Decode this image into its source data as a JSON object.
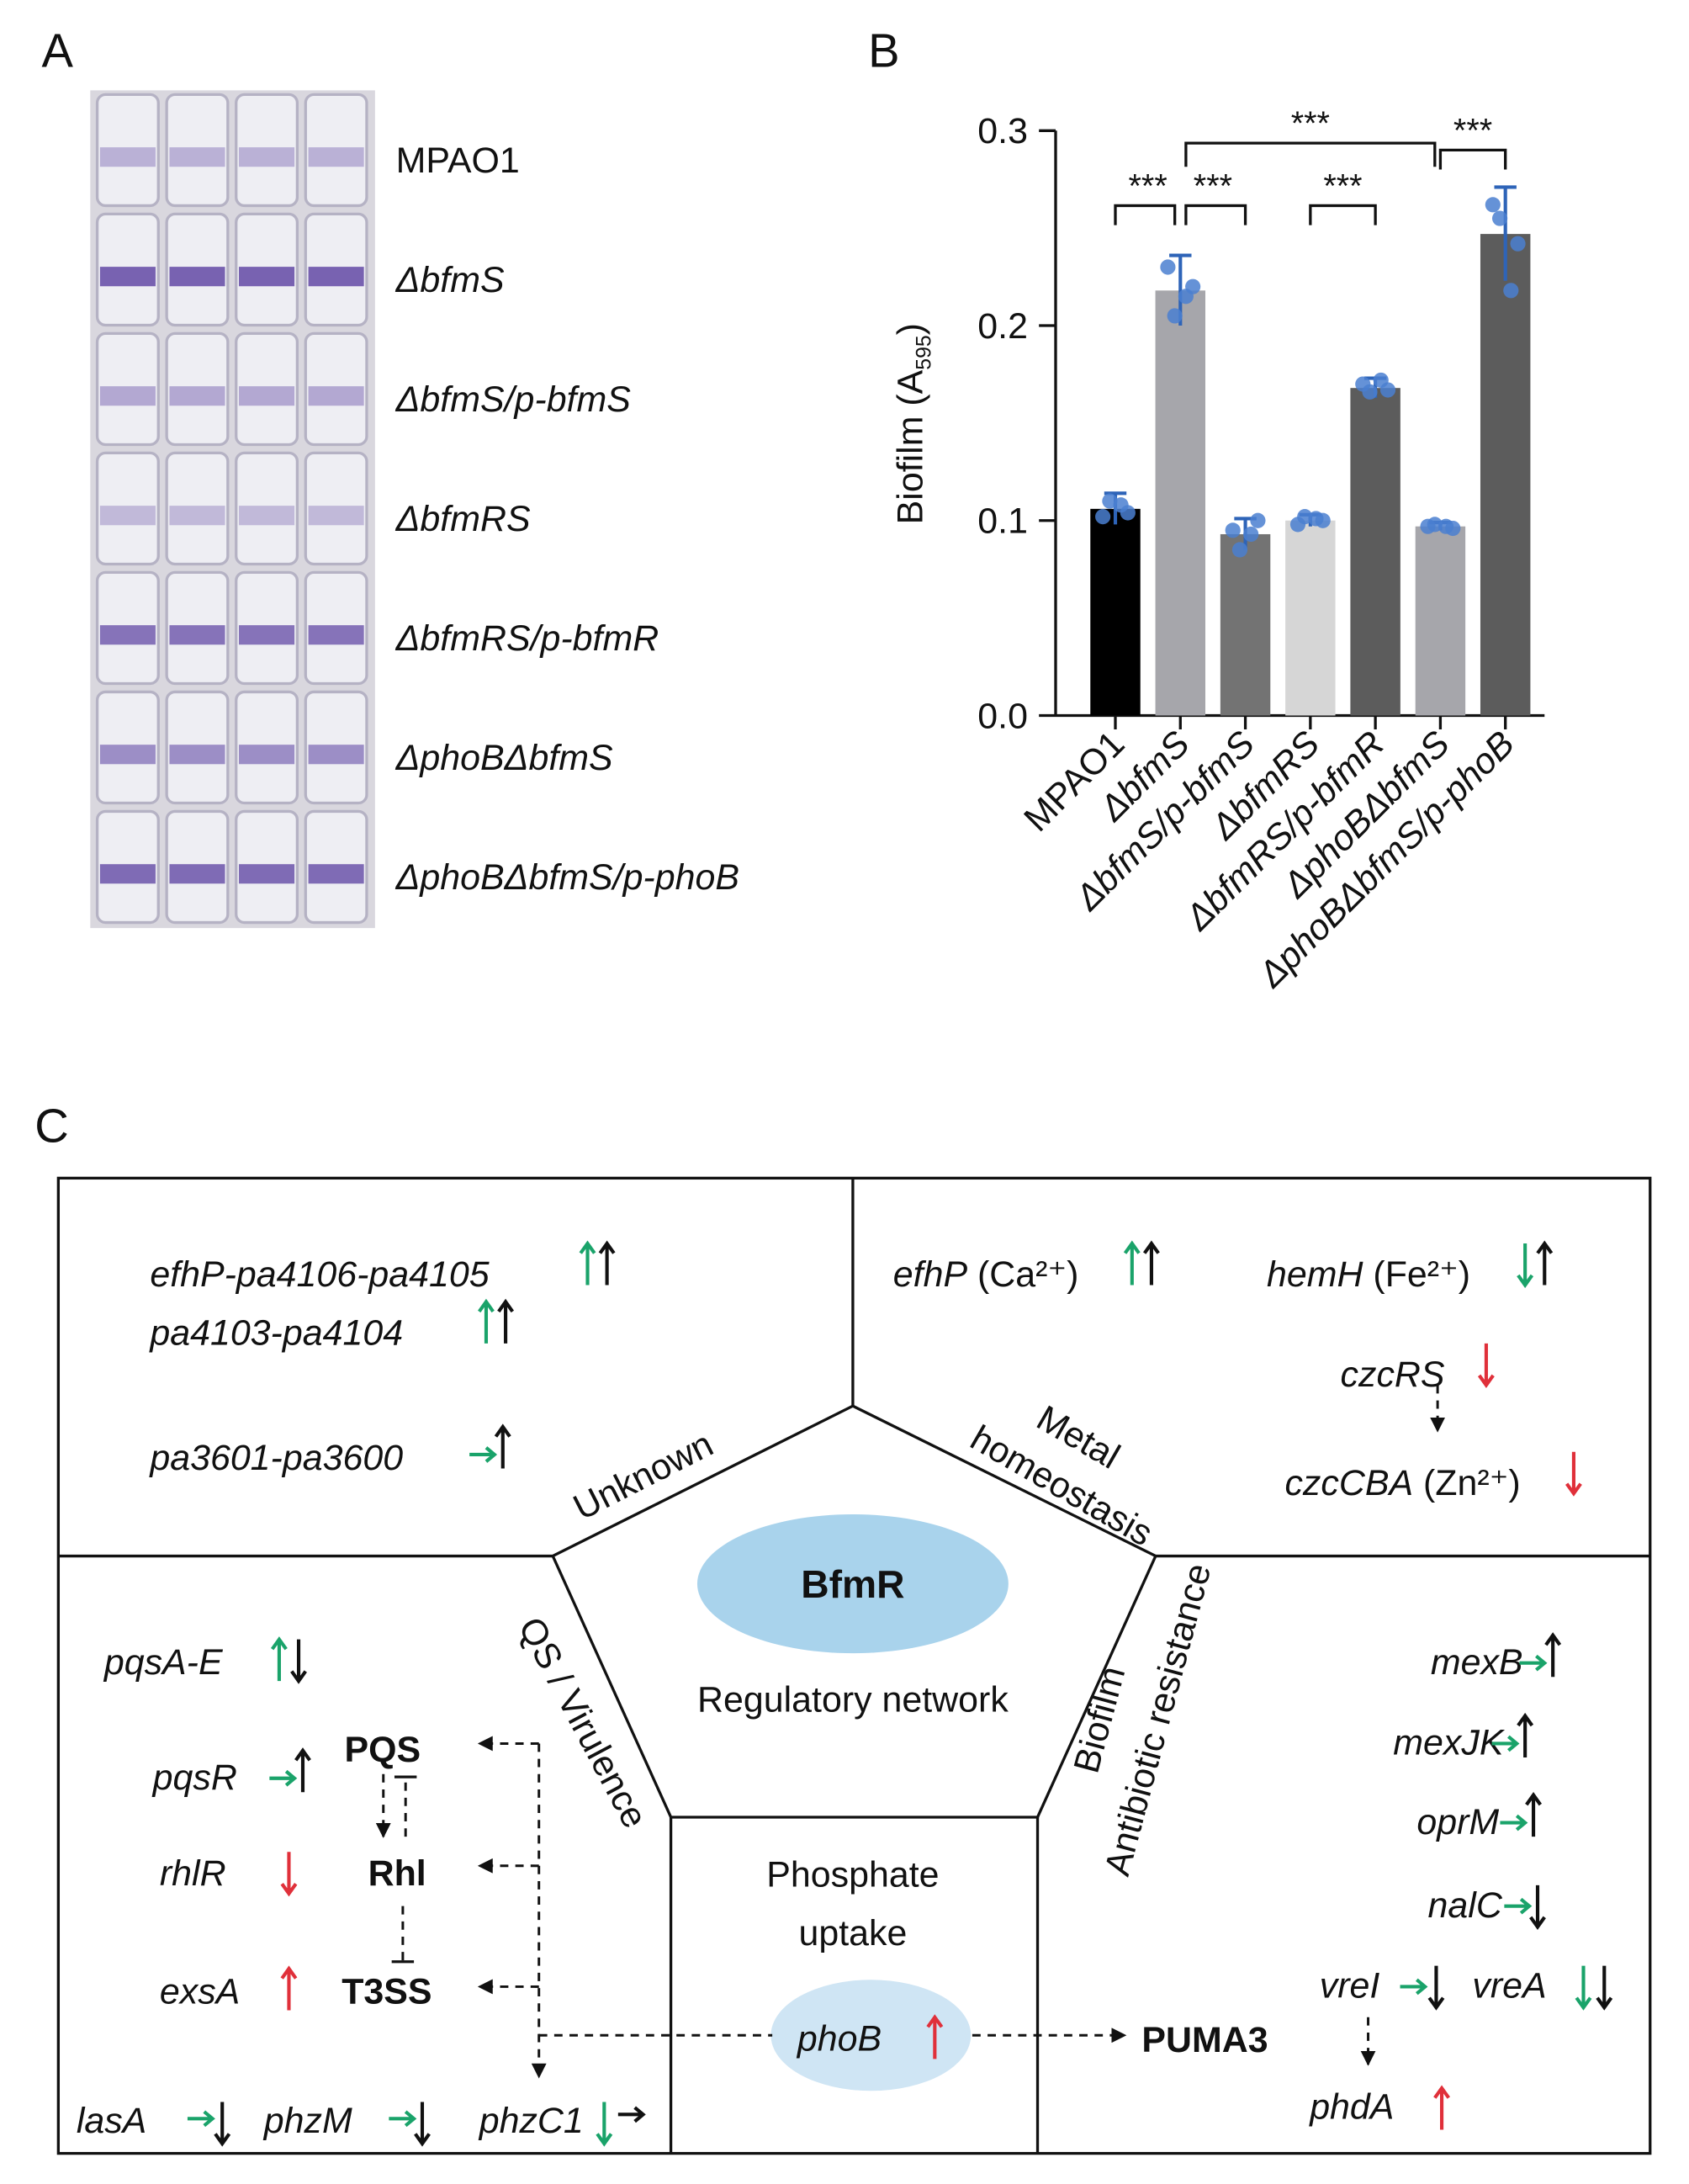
{
  "panels": {
    "a": "A",
    "b": "B",
    "c": "C"
  },
  "panel_a": {
    "strains": [
      "MPAO1",
      "ΔbfmS",
      "ΔbfmS/p-bfmS",
      "ΔbfmRS",
      "ΔbfmRS/p-bfmR",
      "ΔphoBΔbfmS",
      "ΔphoBΔbfmS/p-phoB"
    ]
  },
  "chart_data": {
    "type": "bar",
    "categories": [
      "MPAO1",
      "ΔbfmS",
      "ΔbfmS/p-bfmS",
      "ΔbfmRS",
      "ΔbfmRS/p-bfmR",
      "ΔphoBΔbfmS",
      "ΔphoBΔbfmS/p-phoB"
    ],
    "values": [
      0.106,
      0.218,
      0.093,
      0.1,
      0.168,
      0.097,
      0.247
    ],
    "errors": [
      0.008,
      0.018,
      0.008,
      0.003,
      0.005,
      0.002,
      0.024
    ],
    "points": [
      [
        0.102,
        0.104,
        0.11,
        0.108
      ],
      [
        0.23,
        0.22,
        0.205,
        0.215
      ],
      [
        0.095,
        0.1,
        0.085,
        0.093
      ],
      [
        0.098,
        0.1,
        0.102,
        0.101
      ],
      [
        0.17,
        0.167,
        0.166,
        0.172
      ],
      [
        0.097,
        0.096,
        0.098,
        0.097
      ],
      [
        0.262,
        0.242,
        0.255,
        0.218
      ]
    ],
    "colors": [
      "#000000",
      "#a6a6ab",
      "#737373",
      "#d6d6d6",
      "#5c5c5c",
      "#a6a6ab",
      "#5c5c5c"
    ],
    "point_color": "#4a7fd0",
    "ylabel": {
      "text": "Biofilm (A",
      "sub": "595",
      "end": ")"
    },
    "ylim": [
      0,
      0.3
    ],
    "yticks": [
      {
        "value": 0,
        "label": "0.0"
      },
      0.1,
      0.2,
      0.3
    ],
    "significance": [
      {
        "label": "***",
        "pair": [
          0,
          1
        ]
      },
      {
        "label": "***",
        "pair": [
          1,
          2
        ]
      },
      {
        "label": "***",
        "pair": [
          3,
          4
        ]
      },
      {
        "label": "***",
        "pair": [
          1,
          5
        ]
      },
      {
        "label": "***",
        "pair": [
          5,
          6
        ]
      }
    ]
  },
  "diagram": {
    "center": {
      "title": "BfmR",
      "subtitle": "Regulatory network"
    },
    "unknown": {
      "label": "Unknown",
      "genes": [
        "efhP-pa4106-pa4105",
        "pa4103-pa4104",
        "pa3601-pa3600"
      ]
    },
    "metal": {
      "label": [
        "Metal",
        "homeostasis"
      ],
      "items": [
        {
          "gene": "efhP",
          "ion": " (Ca²⁺)"
        },
        {
          "gene": "hemH",
          "ion": " (Fe²⁺)"
        },
        {
          "gene": "czcRS"
        },
        {
          "gene": "czcCBA",
          "ion": " (Zn²⁺)"
        }
      ]
    },
    "qs": {
      "label": "QS / Virulence",
      "genes": [
        "pqsA-E",
        "pqsR",
        "rhlR",
        "exsA",
        "lasA",
        "phzM",
        "phzC1"
      ],
      "nodes": [
        "PQS",
        "Rhl",
        "T3SS"
      ]
    },
    "biofilm": {
      "label": [
        "Biofilm",
        "Antibiotic resistance"
      ],
      "genes": [
        "mexB",
        "mexJK",
        "oprM",
        "nalC",
        "vreI",
        "vreA",
        "phdA"
      ],
      "node": "PUMA3"
    },
    "phosphate": {
      "label": [
        "Phosphate",
        "uptake"
      ],
      "gene": "phoB"
    }
  }
}
